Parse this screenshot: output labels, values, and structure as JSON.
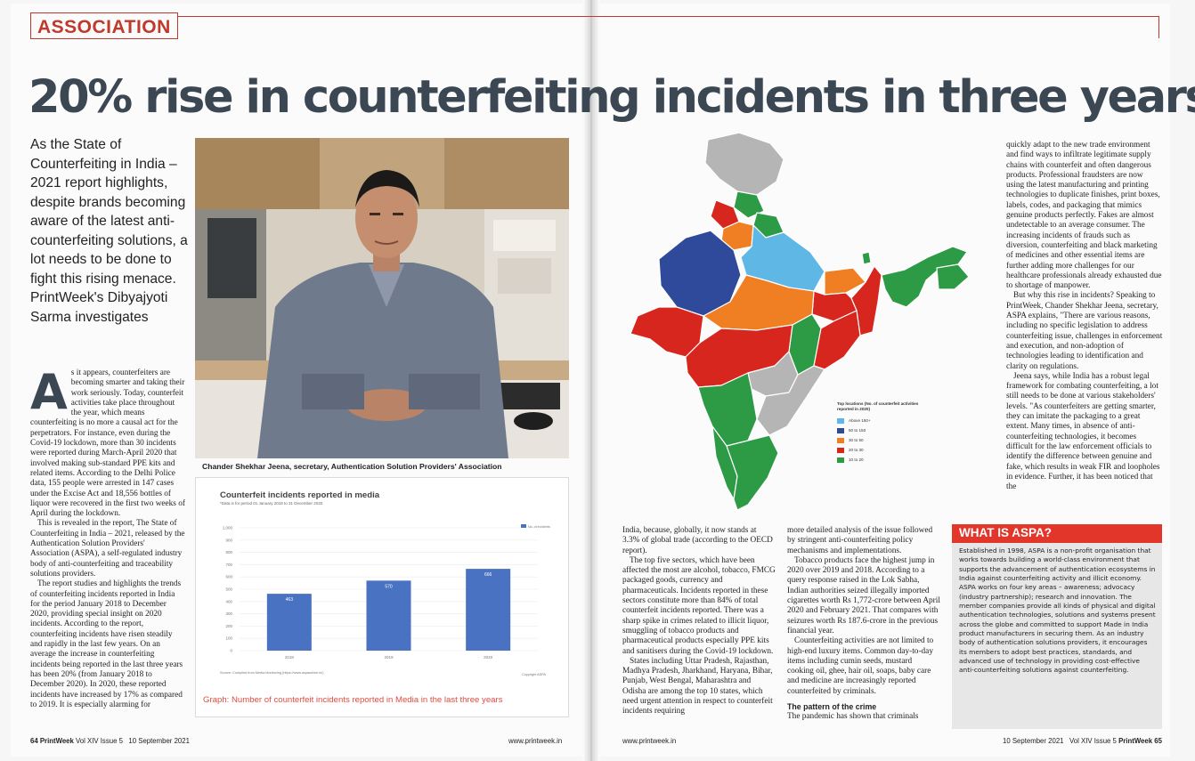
{
  "section": "ASSOCIATION",
  "headline": "20% rise in counterfeiting incidents in three years",
  "standfirst": "As the State of Counterfeiting in India – 2021 report highlights, despite brands becoming aware of the latest anti-counterfeiting solutions, a lot needs to be done to fight this rising menace. PrintWeek's Dibyajyoti Sarma investigates",
  "photo_caption": "Chander Shekhar Jeena, secretary, Authentication Solution Providers' Association",
  "body_left": {
    "drop_cap": "A",
    "p1": "s it appears, counterfeiters are becoming smarter and taking their work seriously. Today, counterfeit activities take place throughout the year, which means counterfeiting is no more a causal act for the perpetrators. For instance, even during the Covid-19 lockdown, more than 30 incidents were reported during March-April 2020 that involved making sub-standard PPE kits and related items. According to the Delhi Police data, 155 people were arrested in 147 cases under the Excise Act and 18,556 bottles of liquor were recovered in the first two weeks of April during the lockdown.",
    "p2": "This is revealed in the report, The State of Counterfeiting in India – 2021, released by the Authentication Solution Providers' Association (ASPA), a self-regulated industry body of anti-counterfeiting and traceability solutions providers.",
    "p3": "The report studies and highlights the trends of counterfeiting incidents reported in India for the period January 2018 to December 2020, providing special insight on 2020 incidents. According to the report, counterfeiting incidents have risen steadily and rapidly in the last few years. On an average the increase in counterfeiting incidents being reported in the last three years has been 20% (from January 2018 to December 2020). In 2020, these reported incidents have increased by 17% as compared to 2019. It is especially alarming for"
  },
  "chart_data": {
    "type": "bar",
    "title": "Counterfeit incidents reported in media",
    "subtitle": "*Data is for period 01 January 2018 to 31 December 2020",
    "categories": [
      "2018",
      "2019",
      "2020"
    ],
    "values": [
      463,
      570,
      666
    ],
    "value_labels": [
      "463",
      "570",
      "666"
    ],
    "series_name": "No. of incidents",
    "yticks": [
      "1,000",
      "900",
      "800",
      "700",
      "600",
      "500",
      "400",
      "300",
      "200",
      "100",
      "0"
    ],
    "ylim": [
      0,
      1000
    ],
    "legend_position": "top-right",
    "bar_color": "#4a72c2",
    "source": "Source: Compiled from Media Monitoring (https://www.aspaonline.in/)",
    "copyright": "Copyright ASPA",
    "caption": "Graph: Number of counterfeit incidents reported in Media in the last three years"
  },
  "body_right_col1": {
    "p1": "India, because, globally, it now stands at 3.3% of global trade (according to the OECD report).",
    "p2": "The top five sectors, which have been affected the most are alcohol, tobacco, FMCG packaged goods, currency and pharmaceuticals. Incidents reported in these sectors constitute more than 84% of total counterfeit incidents reported. There was a sharp spike in crimes related to illicit liquor, smuggling of tobacco products and pharmaceutical products especially PPE kits and sanitisers during the Covid-19 lockdown.",
    "p3": "States including Uttar Pradesh, Rajasthan, Madhya Pradesh, Jharkhand, Haryana, Bihar, Punjab, West Bengal, Maharashtra and Odisha are among the top 10 states, which need urgent attention in respect to counterfeit incidents requiring"
  },
  "body_right_col2": {
    "p1": "more detailed analysis of the issue followed by stringent anti-counterfeiting policy mechanisms and implementations.",
    "p2": "Tobacco products face the highest jump in 2020 over 2019 and 2018. According to a query response raised in the Lok Sabha, Indian authorities seized illegally imported cigarettes worth Rs 1,772-crore between April 2020 and February 2021. That compares with seizures worth Rs 187.6-crore in the previous financial year.",
    "p3": "Counterfeiting activities are not limited to high-end luxury items. Common day-to-day items including cumin seeds, mustard cooking oil, ghee, hair oil, soaps, baby care and medicine are increasingly reported counterfeited by criminals.",
    "subhead": "The pattern of the crime",
    "p4": "The pandemic has shown that criminals"
  },
  "body_right_col3": {
    "p1": "quickly adapt to the new trade environment and find ways to infiltrate legitimate supply chains with counterfeit and often dangerous products. Professional fraudsters are now using the latest manufacturing and printing technologies to duplicate finishes, print boxes, labels, codes, and packaging that mimics genuine products perfectly. Fakes are almost undetectable to an average consumer. The increasing incidents of frauds such as diversion, counterfeiting and black marketing of medicines and other essential items are further adding more challenges for our healthcare professionals already exhausted due to shortage of manpower.",
    "p2": "But why this rise in incidents? Speaking to PrintWeek, Chander Shekhar Jeena, secretary, ASPA explains, \"There are various reasons, including no specific legislation to address counterfeiting issue, challenges in enforcement and execution, and non-adoption of technologies leading to identification and clarity on regulations.",
    "p3": "Jeena says, while India has a robust legal framework for combating counterfeiting, a lot still needs to be done at various stakeholders' levels. \"As counterfeiters are getting smarter, they can imitate the packaging to a great extent. Many times, in absence of anti-counterfeiting technologies, it becomes difficult for the law enforcement officials to identify the difference between genuine and fake, which results in weak FIR and loopholes in evidence. Further, it has been noticed that the"
  },
  "map_legend": {
    "title": "Top locations (No. of counterfeit activities reported in 2020)",
    "items": [
      {
        "label": "Above 150+",
        "color": "#5fb7e6"
      },
      {
        "label": "50 to 150",
        "color": "#2f4a9a"
      },
      {
        "label": "30 to 50",
        "color": "#ef7f22"
      },
      {
        "label": "20 to 30",
        "color": "#d7261e"
      },
      {
        "label": "10 to 20",
        "color": "#2d9a45"
      }
    ],
    "other_color": "#b5b5b5"
  },
  "aspa": {
    "title": "WHAT IS ASPA?",
    "text": "Established in 1998, ASPA is a non-profit organisation that works towards building a world-class environment that supports the advancement of authentication ecosystems in India against counterfeiting activity and illicit economy. ASPA works on four key areas – awareness; advocacy (industry partnership); research and innovation. The member companies provide all kinds of physical and digital authentication technologies, solutions and systems present across the globe and committed to support Made in India product manufacturers in securing them. As an industry body of authentication solutions providers, it encourages its members to adopt best practices, standards, and advanced use of technology in providing cost-effective anti-counterfeiting solutions against counterfeiting."
  },
  "folio_left": {
    "page": "64",
    "magazine": "PrintWeek",
    "issue": "Vol XIV  Issue 5",
    "date": "10 September 2021"
  },
  "folio_right": {
    "page": "65",
    "magazine": "PrintWeek",
    "issue": "Vol XIV  Issue 5",
    "date": "10 September 2021"
  },
  "url": "www.printweek.in"
}
